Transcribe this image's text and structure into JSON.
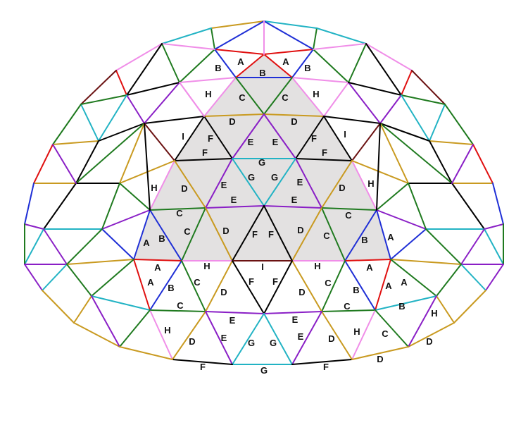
{
  "diagram": {
    "strut_colors": {
      "A": "#e01010",
      "B": "#1f2fd6",
      "C": "#1f7a1f",
      "D": "#c99a20",
      "E": "#8a1fc6",
      "F": "#000000",
      "G": "#22b3c4",
      "H": "#f08ee8",
      "I": "#6b1212"
    },
    "face_fill": "#e3e1e1",
    "labels": [
      "A",
      "B",
      "C",
      "D",
      "E",
      "F",
      "G",
      "H",
      "I"
    ]
  }
}
